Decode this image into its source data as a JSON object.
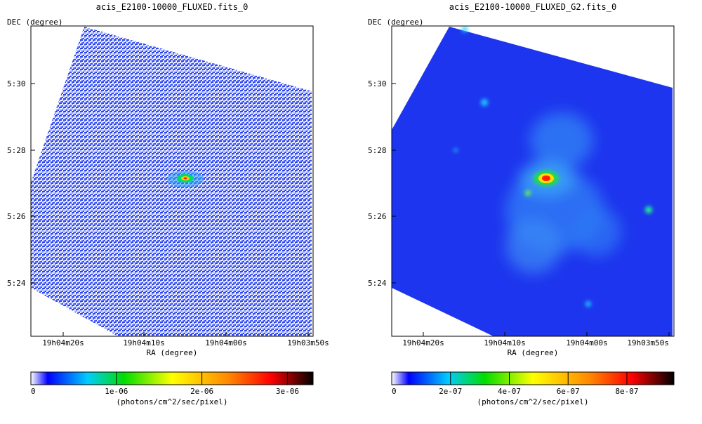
{
  "chart_data": [
    {
      "type": "heatmap",
      "title": "acis_E2100-10000_FLUXED.fits_0",
      "xlabel": "RA (degree)",
      "ylabel": "DEC (degree)",
      "x_ticks": [
        "19h04m20s",
        "19h04m10s",
        "19h04m00s",
        "19h03m50s"
      ],
      "y_ticks": [
        "5:30",
        "5:28",
        "5:26",
        "5:24"
      ],
      "colorbar": {
        "label": "(photons/cm^2/sec/pixel)",
        "ticks": [
          {
            "label": "0",
            "value": 0
          },
          {
            "label": "1e-06",
            "value": 1e-06
          },
          {
            "label": "2e-06",
            "value": 2e-06
          },
          {
            "label": "3e-06",
            "value": 3e-06
          }
        ],
        "max": 3.3e-06
      }
    },
    {
      "type": "heatmap",
      "title": "acis_E2100-10000_FLUXED_G2.fits_0",
      "xlabel": "RA (degree)",
      "ylabel": "DEC (degree)",
      "x_ticks": [
        "19h04m20s",
        "19h04m10s",
        "19h04m00s",
        "19h03m50s"
      ],
      "y_ticks": [
        "5:30",
        "5:28",
        "5:26",
        "5:24"
      ],
      "colorbar": {
        "label": "(photons/cm^2/sec/pixel)",
        "ticks": [
          {
            "label": "0",
            "value": 0
          },
          {
            "label": "2e-07",
            "value": 2e-07
          },
          {
            "label": "4e-07",
            "value": 4e-07
          },
          {
            "label": "6e-07",
            "value": 6e-07
          },
          {
            "label": "8e-07",
            "value": 8e-07
          }
        ],
        "max": 9.6e-07
      }
    }
  ],
  "colors": {
    "colormap": [
      "#ffffff",
      "#0000ff",
      "#00ccff",
      "#00dd00",
      "#ffff00",
      "#ff8800",
      "#ff0000",
      "#000000"
    ],
    "background_field": "#1a2ef0"
  }
}
